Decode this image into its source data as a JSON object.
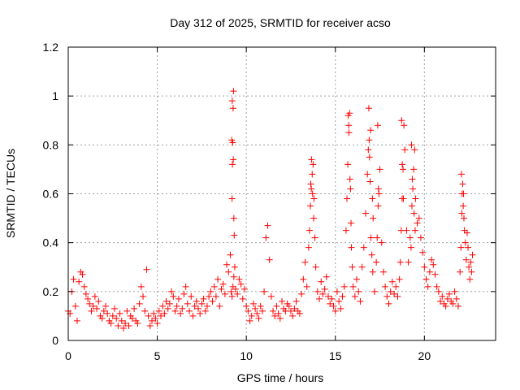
{
  "chart_data": {
    "type": "scatter",
    "title": "Day 312 of 2025, SRMTID for receiver acso",
    "xlabel": "GPS time / hours",
    "ylabel": "SRMTID / TECUs",
    "xlim": [
      0,
      24
    ],
    "ylim": [
      0,
      1.2
    ],
    "xticks": [
      0,
      5,
      10,
      15,
      20
    ],
    "yticks": [
      0,
      0.2,
      0.4,
      0.6,
      0.8,
      1,
      1.2
    ],
    "xtick_labels": [
      "0",
      "5",
      "10",
      "15",
      "20"
    ],
    "ytick_labels": [
      "0",
      "0.2",
      "0.4",
      "0.6",
      "0.8",
      "1",
      "1.2"
    ],
    "grid": true,
    "marker": "+",
    "color": "#ff0000",
    "series": [
      {
        "name": "SRMTID",
        "x": [
          0.0,
          0.1,
          0.2,
          0.3,
          0.4,
          0.5,
          0.6,
          0.7,
          0.8,
          0.9,
          1.0,
          1.1,
          1.2,
          1.3,
          1.4,
          1.5,
          1.6,
          1.7,
          1.8,
          1.9,
          2.0,
          2.1,
          2.2,
          2.3,
          2.4,
          2.5,
          2.6,
          2.7,
          2.8,
          2.9,
          3.0,
          3.1,
          3.2,
          3.3,
          3.4,
          3.5,
          3.6,
          3.7,
          3.8,
          3.9,
          4.0,
          4.1,
          4.2,
          4.3,
          4.4,
          4.5,
          4.6,
          4.7,
          4.8,
          4.9,
          5.0,
          5.1,
          5.2,
          5.3,
          5.4,
          5.5,
          5.6,
          5.7,
          5.8,
          5.9,
          6.0,
          6.1,
          6.2,
          6.3,
          6.4,
          6.5,
          6.6,
          6.7,
          6.8,
          6.9,
          7.0,
          7.1,
          7.2,
          7.3,
          7.4,
          7.5,
          7.6,
          7.7,
          7.8,
          7.9,
          8.0,
          8.1,
          8.2,
          8.3,
          8.4,
          8.5,
          8.6,
          8.7,
          8.8,
          8.9,
          9.0,
          9.1,
          9.15,
          9.2,
          9.25,
          9.3,
          9.35,
          9.4,
          9.5,
          9.6,
          9.7,
          9.8,
          9.9,
          10.0,
          10.1,
          10.2,
          10.3,
          10.4,
          10.5,
          10.6,
          10.7,
          10.8,
          10.9,
          11.0,
          11.1,
          11.2,
          11.3,
          11.4,
          11.5,
          11.6,
          11.7,
          11.8,
          11.9,
          12.0,
          12.1,
          12.2,
          12.3,
          12.4,
          12.5,
          12.6,
          12.7,
          12.8,
          12.9,
          13.0,
          13.1,
          13.2,
          13.3,
          13.4,
          13.5,
          13.55,
          13.6,
          13.65,
          13.7,
          13.75,
          13.8,
          13.85,
          13.9,
          14.0,
          14.1,
          14.2,
          14.3,
          14.4,
          14.5,
          14.6,
          14.7,
          14.8,
          14.9,
          15.0,
          15.1,
          15.2,
          15.3,
          15.4,
          15.5,
          15.6,
          15.65,
          15.7,
          15.75,
          15.8,
          15.85,
          15.9,
          15.95,
          16.0,
          16.1,
          16.2,
          16.3,
          16.4,
          16.5,
          16.6,
          16.7,
          16.8,
          16.85,
          16.9,
          16.95,
          17.0,
          17.05,
          17.1,
          17.2,
          17.3,
          17.35,
          17.4,
          17.45,
          17.5,
          17.6,
          17.7,
          17.8,
          17.9,
          18.0,
          18.1,
          18.2,
          18.3,
          18.4,
          18.5,
          18.6,
          18.65,
          18.7,
          18.75,
          18.8,
          18.85,
          18.9,
          19.0,
          19.1,
          19.2,
          19.25,
          19.3,
          19.35,
          19.4,
          19.45,
          19.5,
          19.6,
          19.7,
          19.8,
          19.9,
          20.0,
          20.1,
          20.2,
          20.3,
          20.4,
          20.5,
          20.6,
          20.7,
          20.8,
          20.9,
          21.0,
          21.1,
          21.2,
          21.3,
          21.4,
          21.5,
          21.6,
          21.7,
          21.8,
          21.9,
          22.0,
          22.05,
          22.1,
          22.15,
          22.2,
          22.25,
          22.3,
          22.35,
          22.4,
          22.45,
          22.5,
          22.55,
          22.6,
          22.65,
          22.7,
          9.2,
          9.22,
          9.24,
          9.26,
          9.28,
          9.3,
          9.18,
          9.21,
          9.27,
          9.32,
          13.62,
          13.66,
          13.72,
          13.78,
          15.72,
          15.76,
          15.82,
          15.88,
          16.88,
          16.92,
          16.98,
          17.08,
          17.12,
          17.38,
          17.42,
          18.72,
          18.76,
          18.82,
          19.28,
          19.32,
          19.42,
          19.48,
          22.08,
          22.12,
          22.18,
          22.22
        ],
        "y": [
          0.12,
          0.11,
          0.2,
          0.25,
          0.14,
          0.08,
          0.24,
          0.28,
          0.27,
          0.22,
          0.19,
          0.17,
          0.15,
          0.12,
          0.14,
          0.18,
          0.13,
          0.16,
          0.1,
          0.09,
          0.12,
          0.14,
          0.11,
          0.08,
          0.07,
          0.1,
          0.13,
          0.09,
          0.06,
          0.11,
          0.08,
          0.05,
          0.07,
          0.12,
          0.06,
          0.1,
          0.09,
          0.13,
          0.08,
          0.07,
          0.15,
          0.22,
          0.18,
          0.12,
          0.29,
          0.1,
          0.06,
          0.08,
          0.11,
          0.09,
          0.07,
          0.12,
          0.1,
          0.14,
          0.11,
          0.16,
          0.13,
          0.15,
          0.2,
          0.18,
          0.12,
          0.14,
          0.17,
          0.11,
          0.13,
          0.19,
          0.22,
          0.15,
          0.12,
          0.18,
          0.1,
          0.14,
          0.16,
          0.13,
          0.11,
          0.15,
          0.17,
          0.12,
          0.14,
          0.18,
          0.2,
          0.16,
          0.22,
          0.18,
          0.25,
          0.14,
          0.21,
          0.23,
          0.19,
          0.31,
          0.28,
          0.35,
          0.2,
          0.18,
          0.22,
          0.26,
          0.3,
          0.21,
          0.19,
          0.25,
          0.23,
          0.17,
          0.21,
          0.14,
          0.12,
          0.08,
          0.1,
          0.15,
          0.13,
          0.11,
          0.09,
          0.14,
          0.12,
          0.2,
          0.42,
          0.47,
          0.33,
          0.18,
          0.12,
          0.1,
          0.14,
          0.11,
          0.09,
          0.16,
          0.13,
          0.12,
          0.15,
          0.14,
          0.12,
          0.1,
          0.13,
          0.16,
          0.12,
          0.11,
          0.19,
          0.25,
          0.32,
          0.22,
          0.38,
          0.45,
          0.55,
          0.62,
          0.68,
          0.72,
          0.58,
          0.42,
          0.3,
          0.2,
          0.17,
          0.24,
          0.19,
          0.21,
          0.26,
          0.18,
          0.15,
          0.17,
          0.14,
          0.12,
          0.2,
          0.16,
          0.13,
          0.18,
          0.22,
          0.45,
          0.58,
          0.72,
          0.88,
          0.93,
          0.62,
          0.38,
          0.3,
          0.22,
          0.18,
          0.25,
          0.2,
          0.16,
          0.3,
          0.38,
          0.52,
          0.68,
          0.78,
          0.82,
          0.65,
          0.42,
          0.35,
          0.28,
          0.2,
          0.32,
          0.42,
          0.55,
          0.6,
          0.7,
          0.4,
          0.28,
          0.22,
          0.18,
          0.15,
          0.2,
          0.24,
          0.19,
          0.22,
          0.18,
          0.25,
          0.32,
          0.45,
          0.58,
          0.7,
          0.88,
          0.78,
          0.45,
          0.32,
          0.42,
          0.38,
          0.55,
          0.62,
          0.7,
          0.78,
          0.58,
          0.48,
          0.5,
          0.42,
          0.36,
          0.3,
          0.25,
          0.22,
          0.28,
          0.33,
          0.31,
          0.27,
          0.22,
          0.2,
          0.16,
          0.18,
          0.15,
          0.14,
          0.17,
          0.19,
          0.16,
          0.15,
          0.2,
          0.17,
          0.14,
          0.28,
          0.38,
          0.52,
          0.64,
          0.6,
          0.45,
          0.4,
          0.33,
          0.44,
          0.38,
          0.3,
          0.25,
          0.32,
          0.28,
          0.35,
          0.58,
          0.72,
          0.81,
          0.95,
          1.02,
          0.5,
          0.82,
          0.98,
          0.74,
          0.43,
          0.64,
          0.74,
          0.6,
          0.5,
          0.92,
          0.85,
          0.66,
          0.48,
          0.95,
          0.75,
          0.86,
          0.58,
          0.5,
          0.88,
          0.62,
          0.9,
          0.72,
          0.58,
          0.8,
          0.66,
          0.52,
          0.45,
          0.68,
          0.6,
          0.55,
          0.5
        ],
        "color": "#ff0000"
      }
    ]
  }
}
